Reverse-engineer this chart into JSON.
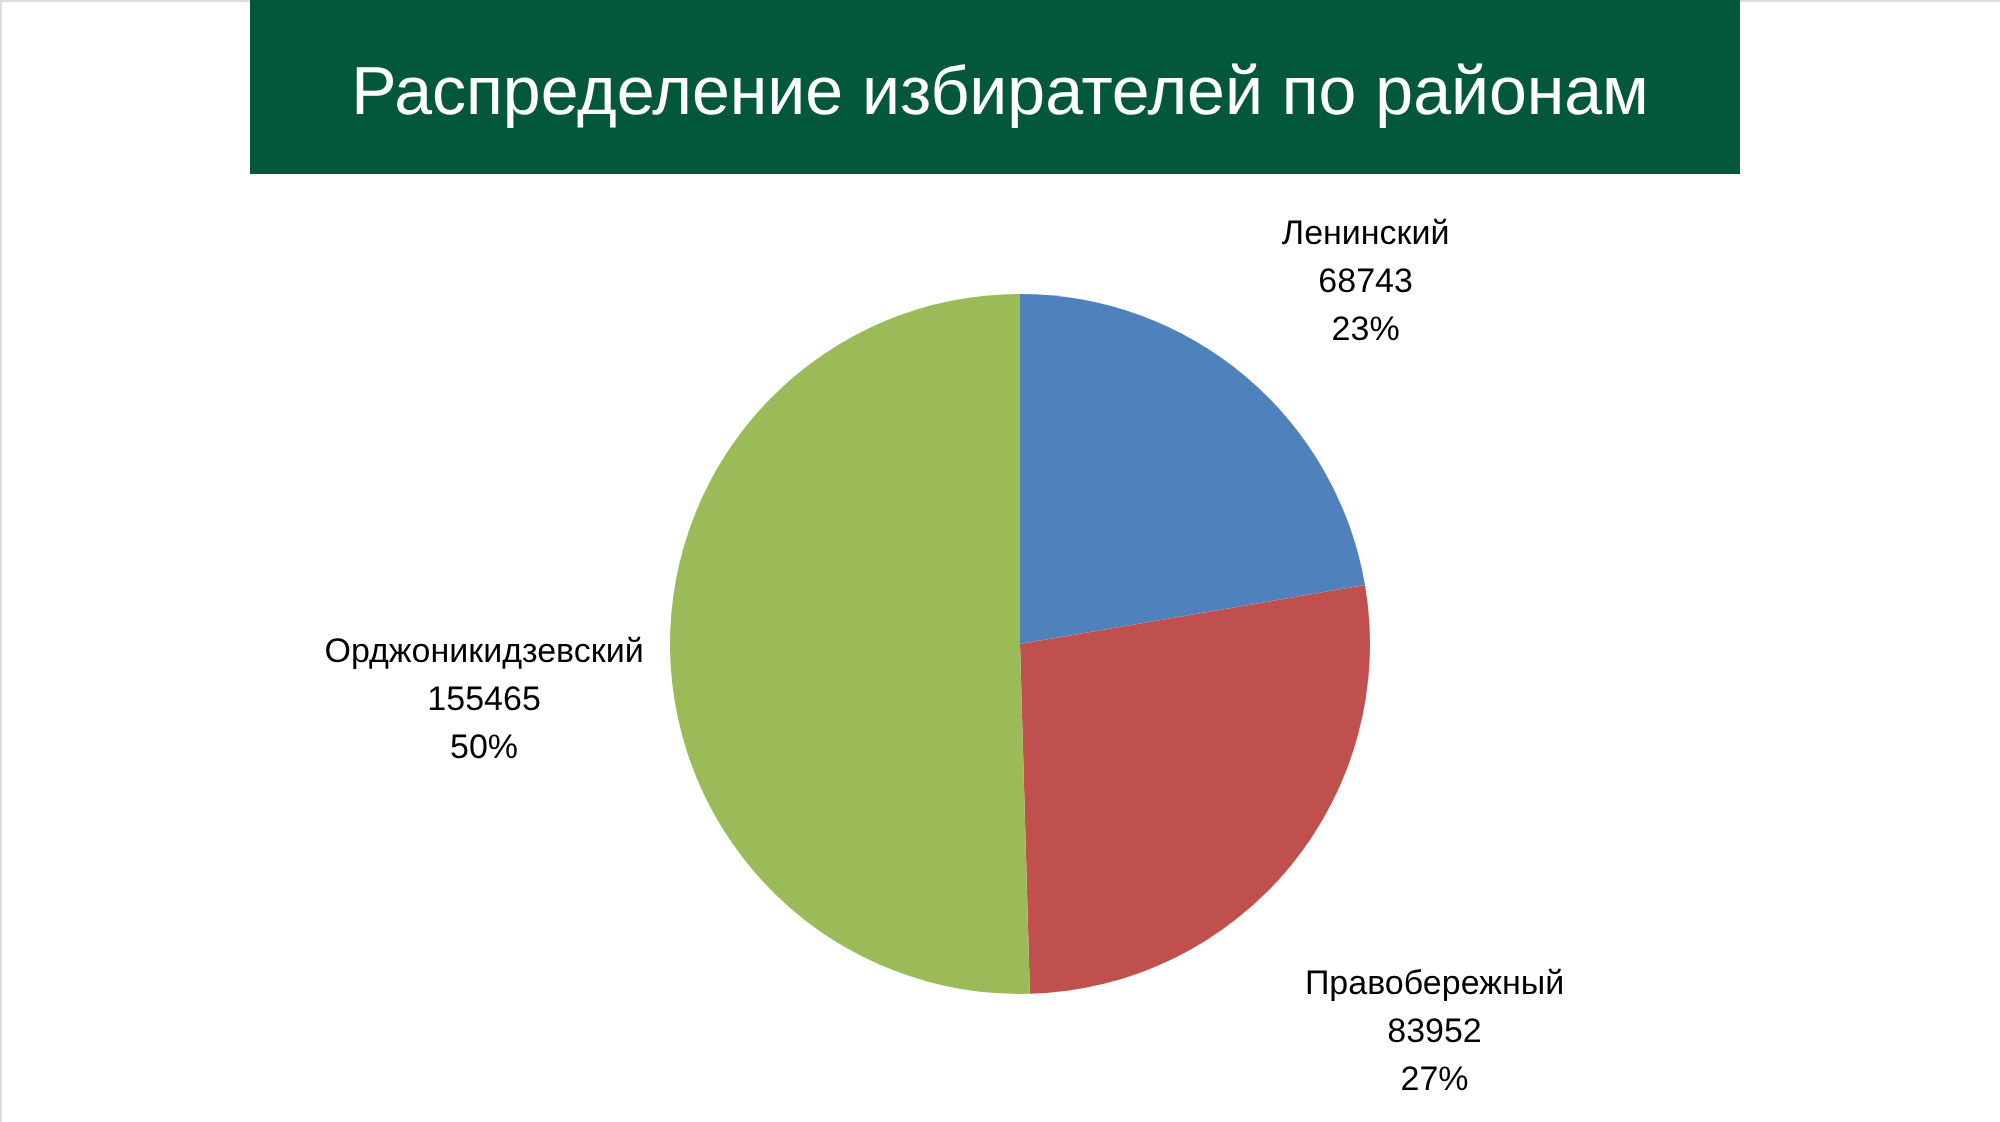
{
  "chart_data": {
    "type": "pie",
    "title": "Распределение избирателей по районам",
    "categories": [
      "Ленинский",
      "Правобережный",
      "Орджоникидзевский"
    ],
    "values": [
      68743,
      83952,
      155465
    ],
    "value_labels": [
      "68743\n23%",
      "83952\n27%",
      "155465\n50%"
    ],
    "colors": [
      "#4f81bd",
      "#c0504d",
      "#9bbb59"
    ]
  }
}
